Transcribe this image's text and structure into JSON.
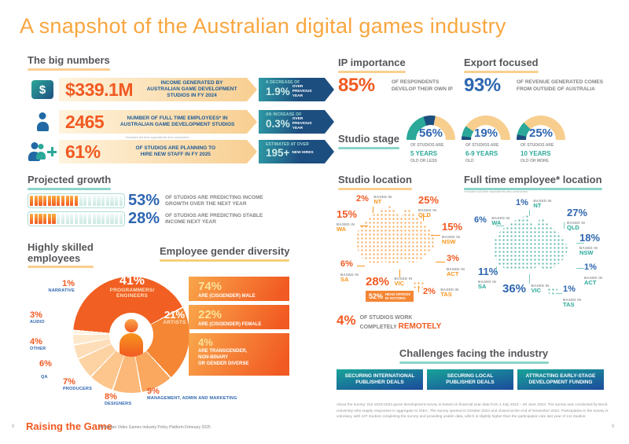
{
  "page": {
    "title": "A snapshot of the Australian digital games industry",
    "page_left": "8",
    "page_right": "9",
    "footer_brand": "Raising the Game",
    "footer_caption": "Australian Video Games Industry Policy Platform February 2025",
    "about": "About the survey: Our 2023-2024 game development survey is based on financial year data from 1 July 2023 – 30 June 2024. The survey was conducted by Bond University who supply responses in aggregate to IGEA. The survey opened in October 2024 and closed at the end of November 2024. Participation in the survey is voluntary, with 137 studios completing the survey and providing usable data, which is slightly higher than the participation rate last year of 111 studios."
  },
  "big_numbers": {
    "heading": "The big numbers",
    "footnote": "*Includes full time equivalents and contractors",
    "rows": [
      {
        "icon": "dollar-book-icon",
        "value": "$339.1M",
        "desc": "INCOME GENERATED BY\nAUSTRALIAN GAME DEVELOPMENT\nSTUDIOS IN FY 2024",
        "tag_top": "A DECREASE OF",
        "tag_value": "1.9%",
        "tag_side": "OVER PREVIOUS YEAR"
      },
      {
        "icon": "person-icon",
        "value": "2465",
        "desc": "NUMBER OF FULL TIME EMPLOYEES* IN\nAUSTRALIAN GAME DEVELOPMENT STUDIOS",
        "tag_top": "AN INCREASE OF",
        "tag_value": "0.3%",
        "tag_side": "OVER PREVIOUS YEAR"
      },
      {
        "icon": "people-plus-icon",
        "value": "61%",
        "desc": "OF STUDIOS ARE PLANNING TO\nHIRE NEW STAFF IN FY 2025",
        "tag_top": "ESTIMATED AT OVER",
        "tag_value": "195+",
        "tag_side": "NEW HIRES"
      }
    ]
  },
  "projected_growth": {
    "heading": "Projected growth",
    "bars": [
      {
        "pct": "53%",
        "value": 53,
        "desc": "OF STUDIOS ARE PREDICTING INCOME\nGROWTH OVER THE NEXT YEAR",
        "segments_total": 21,
        "segments_filled": 11
      },
      {
        "pct": "28%",
        "value": 28,
        "desc": "OF STUDIOS ARE PREDICTING STABLE\nINCOME NEXT YEAR",
        "segments_total": 21,
        "segments_filled": 6
      }
    ]
  },
  "skills": {
    "heading": "Highly skilled\nemployees",
    "pie": {
      "type": "pie",
      "start_deg": 275,
      "slices": [
        {
          "pct": "41%",
          "value": 41,
          "label": "PROGRAMMERS/\nENGINEERS",
          "color": "#F15F22"
        },
        {
          "pct": "21%",
          "value": 21,
          "label": "ARTISTS",
          "color": "#F58634"
        },
        {
          "pct": "9%",
          "value": 9,
          "label": "MANAGEMENT, ADMIN AND MARKETING",
          "color": "#FAA85F"
        },
        {
          "pct": "8%",
          "value": 8,
          "label": "DESIGNERS",
          "color": "#FBB878"
        },
        {
          "pct": "7%",
          "value": 7,
          "label": "PRODUCERS",
          "color": "#FCC68D"
        },
        {
          "pct": "6%",
          "value": 6,
          "label": "QA",
          "color": "#FDD3A3"
        },
        {
          "pct": "4%",
          "value": 4,
          "label": "OTHER",
          "color": "#FDDEB8"
        },
        {
          "pct": "3%",
          "value": 3,
          "label": "AUDIO",
          "color": "#FEE8CC"
        },
        {
          "pct": "1%",
          "value": 1,
          "label": "NARRATIVE",
          "color": "#FEF0DC"
        }
      ]
    }
  },
  "gender": {
    "heading": "Employee gender diversity",
    "boxes": [
      {
        "pct": "74%",
        "value": 74,
        "label": "ARE (CISGENDER) MALE"
      },
      {
        "pct": "22%",
        "value": 22,
        "label": "ARE (CISGENDER) FEMALE"
      },
      {
        "pct": "4%",
        "value": 4,
        "label": "ARE TRANSGENDER,\nNON-BINARY\nOR GENDER DIVERSE"
      }
    ]
  },
  "ip": {
    "heading": "IP importance",
    "pct": "85%",
    "desc": "OF RESPONDENTS\nDEVELOP THEIR OWN IP"
  },
  "export": {
    "heading": "Export focused",
    "pct": "93%",
    "desc": "OF REVENUE GENERATED COMES\nFROM OUTSIDE OF AUSTRALIA"
  },
  "studio_stage": {
    "heading": "Studio stage",
    "gauges": [
      {
        "pct": "56%",
        "value": 56,
        "line1": "OF STUDIOS ARE",
        "years": "5 YEARS",
        "line3": "OLD OR LESS",
        "segments": [
          [
            "teal",
            0,
            40
          ],
          [
            "navy",
            40,
            56
          ]
        ]
      },
      {
        "pct": "19%",
        "value": 19,
        "line1": "OF STUDIOS ARE",
        "years": "6-9 YEARS",
        "line3": "OLD",
        "segments": [
          [
            "navy",
            0,
            5
          ],
          [
            "teal",
            5,
            19
          ]
        ]
      },
      {
        "pct": "25%",
        "value": 25,
        "line1": "OF STUDIOS ARE",
        "years": "10 YEARS",
        "line3": "OLD OR MORE",
        "segments": [
          [
            "navy",
            0,
            7
          ],
          [
            "teal",
            7,
            25
          ]
        ]
      }
    ]
  },
  "studio_location": {
    "heading": "Studio location",
    "based_in": "BASED IN",
    "head_offices": {
      "pct": "52%",
      "label": "HEAD OFFICES\nIN VICTORIA"
    },
    "labels": [
      {
        "pct": "2%",
        "value": 2,
        "state": "NT"
      },
      {
        "pct": "25%",
        "value": 25,
        "state": "QLD"
      },
      {
        "pct": "15%",
        "value": 15,
        "state": "WA"
      },
      {
        "pct": "15%",
        "value": 15,
        "state": "NSW"
      },
      {
        "pct": "3%",
        "value": 3,
        "state": "ACT"
      },
      {
        "pct": "6%",
        "value": 6,
        "state": "SA"
      },
      {
        "pct": "28%",
        "value": 28,
        "state": "VIC"
      },
      {
        "pct": "2%",
        "value": 2,
        "state": "TAS"
      }
    ]
  },
  "fte_location": {
    "heading": "Full time employee* location",
    "footnote": "*Includes full time equivalents and contractors",
    "based_in": "BASED IN",
    "labels": [
      {
        "pct": "1%",
        "value": 1,
        "state": "NT"
      },
      {
        "pct": "27%",
        "value": 27,
        "state": "QLD"
      },
      {
        "pct": "6%",
        "value": 6,
        "state": "WA"
      },
      {
        "pct": "18%",
        "value": 18,
        "state": "NSW"
      },
      {
        "pct": "11%",
        "value": 11,
        "state": "SA"
      },
      {
        "pct": "1%",
        "value": 1,
        "state": "ACT"
      },
      {
        "pct": "36%",
        "value": 36,
        "state": "VIC"
      },
      {
        "pct": "1%",
        "value": 1,
        "state": "TAS"
      }
    ]
  },
  "remote": {
    "pct": "4%",
    "line1": "OF STUDIOS WORK",
    "line2": "COMPLETELY",
    "highlight": "REMOTELY"
  },
  "challenges": {
    "heading": "Challenges facing the industry",
    "boxes": [
      {
        "label": "SECURING INTERNATIONAL\nPUBLISHER DEALS"
      },
      {
        "label": "SECURING LOCAL\nPUBLISHER DEALS"
      },
      {
        "label": "ATTRACTING EARLY-STAGE\nDEVELOPMENT FUNDING"
      }
    ]
  },
  "colors": {
    "orange": "#F15A22",
    "orange_light": "#F9A63E",
    "blue": "#2E66B0",
    "navy": "#1D4E80",
    "teal": "#2BA899",
    "tan": "#F7CE8E"
  }
}
